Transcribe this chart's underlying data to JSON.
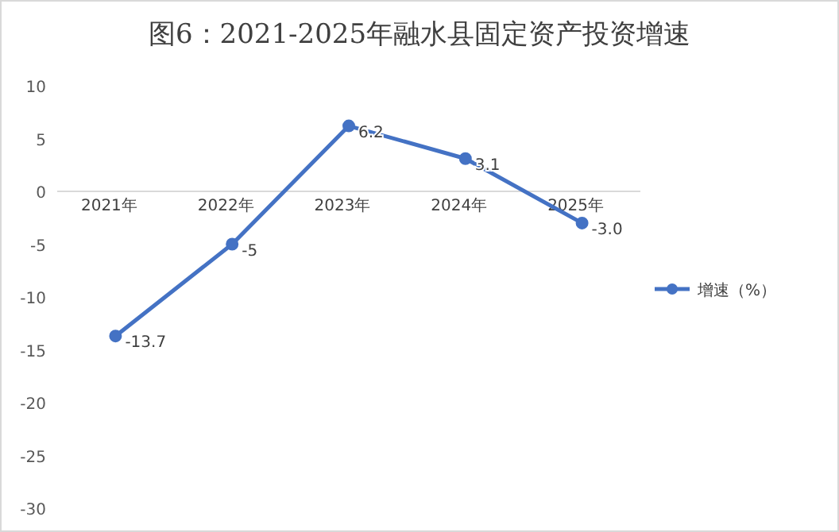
{
  "chart_data": {
    "type": "line",
    "title": "图6：2021-2025年融水县固定资产投资增速",
    "categories": [
      "2021年",
      "2022年",
      "2023年",
      "2024年",
      "2025年"
    ],
    "series": [
      {
        "name": "增速（%）",
        "color": "#4472c4",
        "values": [
          -13.7,
          -5,
          6.2,
          3.1,
          -3.0
        ],
        "value_labels": [
          "-13.7",
          "-5",
          "6.2",
          "3.1",
          "-3.0"
        ]
      }
    ],
    "ylim": [
      -30,
      10
    ],
    "yticks": [
      -30,
      -25,
      -20,
      -15,
      -10,
      -5,
      0,
      5,
      10
    ],
    "marker": "circle",
    "legend": "right",
    "grid": false
  }
}
